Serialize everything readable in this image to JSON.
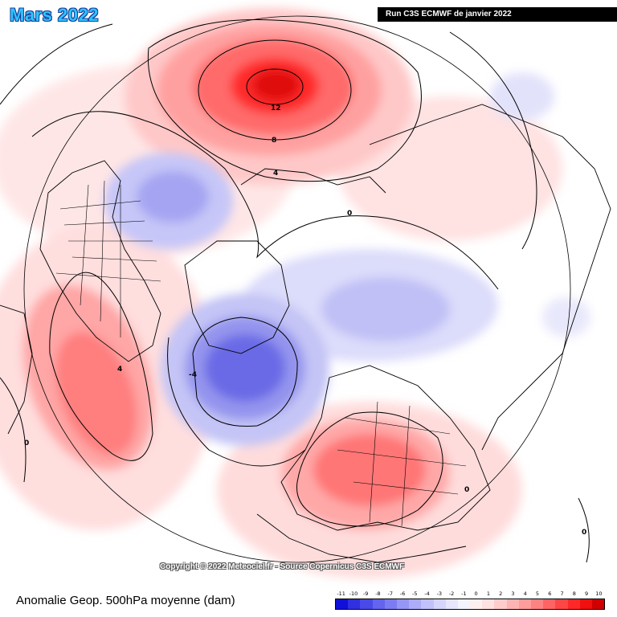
{
  "title": "Mars 2022",
  "run_label": "Run C3S ECMWF de janvier 2022",
  "copyright": "Copyright © 2022 Meteociel.fr - Source Copernicus C3S ECMWF",
  "caption": "Anomalie Geop. 500hPa moyenne (dam)",
  "contour_labels": [
    "12",
    "8",
    "4",
    "0",
    "-4",
    "4",
    "0",
    "0",
    "0"
  ],
  "scale": {
    "ticks": [
      "-11",
      "-10",
      "-9",
      "-8",
      "-7",
      "-6",
      "-5",
      "-4",
      "-3",
      "-2",
      "-1",
      "0",
      "1",
      "2",
      "3",
      "4",
      "5",
      "6",
      "7",
      "8",
      "9",
      "10"
    ],
    "colors": [
      "#1010d8",
      "#3030e0",
      "#4a4ae8",
      "#6464ee",
      "#7c7cf2",
      "#9696f5",
      "#acacf8",
      "#c2c2fa",
      "#d6d6fc",
      "#e6e6fd",
      "#f4f4fe",
      "#fff0f0",
      "#ffe2e2",
      "#ffcccc",
      "#ffb4b4",
      "#ff9c9c",
      "#ff8282",
      "#ff6464",
      "#ff4646",
      "#ff2828",
      "#f01010",
      "#d00000"
    ]
  },
  "colors": {
    "title": "#2fc4ff",
    "positive": "#ff2020",
    "negative": "#4040e0"
  }
}
